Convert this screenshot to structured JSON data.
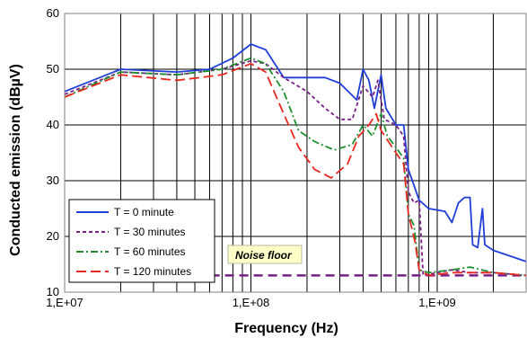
{
  "chart_data": {
    "type": "line",
    "title": "",
    "xlabel": "Frequency (Hz)",
    "ylabel": "Conducted emission (dBµV)",
    "xscale": "log",
    "xlim": [
      10000000.0,
      3000000000.0
    ],
    "ylim": [
      10,
      60
    ],
    "grid": true,
    "legend_position": "bottom-left",
    "x_ticks": [
      {
        "value": 10000000.0,
        "label": "1,E+07"
      },
      {
        "value": 100000000.0,
        "label": "1,E+08"
      },
      {
        "value": 1000000000.0,
        "label": "1,E+09"
      }
    ],
    "y_ticks": [
      {
        "value": 10,
        "label": "10"
      },
      {
        "value": 20,
        "label": "20"
      },
      {
        "value": 30,
        "label": "30"
      },
      {
        "value": 40,
        "label": "40"
      },
      {
        "value": 50,
        "label": "50"
      },
      {
        "value": 60,
        "label": "60"
      }
    ],
    "series": [
      {
        "name": "T = 0 minute",
        "color": "#1f3fd8",
        "dash": "solid",
        "points": [
          [
            10000000.0,
            46
          ],
          [
            20000000.0,
            50
          ],
          [
            40000000.0,
            49.5
          ],
          [
            60000000.0,
            50
          ],
          [
            80000000.0,
            52
          ],
          [
            100000000.0,
            54.5
          ],
          [
            120000000.0,
            53.5
          ],
          [
            150000000.0,
            48.5
          ],
          [
            250000000.0,
            48.5
          ],
          [
            300000000.0,
            47.5
          ],
          [
            370000000.0,
            44.5
          ],
          [
            400000000.0,
            50
          ],
          [
            430000000.0,
            48
          ],
          [
            460000000.0,
            43
          ],
          [
            500000000.0,
            49
          ],
          [
            530000000.0,
            43
          ],
          [
            600000000.0,
            40
          ],
          [
            660000000.0,
            40
          ],
          [
            700000000.0,
            32
          ],
          [
            800000000.0,
            26.5
          ],
          [
            900000000.0,
            25
          ],
          [
            1100000000.0,
            24.5
          ],
          [
            1200000000.0,
            22.5
          ],
          [
            1300000000.0,
            26
          ],
          [
            1400000000.0,
            27
          ],
          [
            1500000000.0,
            27
          ],
          [
            1550000000.0,
            18.5
          ],
          [
            1650000000.0,
            18
          ],
          [
            1750000000.0,
            25
          ],
          [
            1800000000.0,
            18.5
          ],
          [
            2000000000.0,
            17.5
          ],
          [
            3000000000.0,
            15.5
          ]
        ]
      },
      {
        "name": "T = 30 minutes",
        "color": "#7a1f8a",
        "dash": "short-dash",
        "points": [
          [
            10000000.0,
            45.5
          ],
          [
            20000000.0,
            49.5
          ],
          [
            40000000.0,
            49
          ],
          [
            70000000.0,
            50
          ],
          [
            100000000.0,
            51.5
          ],
          [
            120000000.0,
            51
          ],
          [
            150000000.0,
            48.5
          ],
          [
            200000000.0,
            46
          ],
          [
            250000000.0,
            43
          ],
          [
            300000000.0,
            41
          ],
          [
            350000000.0,
            41
          ],
          [
            400000000.0,
            47
          ],
          [
            450000000.0,
            45
          ],
          [
            480000000.0,
            48
          ],
          [
            520000000.0,
            41
          ],
          [
            600000000.0,
            40
          ],
          [
            660000000.0,
            38
          ],
          [
            700000000.0,
            28
          ],
          [
            750000000.0,
            26
          ],
          [
            800000000.0,
            26.5
          ],
          [
            840000000.0,
            13
          ],
          [
            1000000000.0,
            13.5
          ],
          [
            1200000000.0,
            14
          ],
          [
            1500000000.0,
            13.5
          ],
          [
            2000000000.0,
            13.5
          ],
          [
            3000000000.0,
            13
          ]
        ]
      },
      {
        "name": "T = 60 minutes",
        "color": "#1f8f2e",
        "dash": "dash-dot",
        "points": [
          [
            10000000.0,
            45
          ],
          [
            20000000.0,
            49.5
          ],
          [
            40000000.0,
            49
          ],
          [
            70000000.0,
            50
          ],
          [
            100000000.0,
            52
          ],
          [
            120000000.0,
            51
          ],
          [
            150000000.0,
            46
          ],
          [
            180000000.0,
            39
          ],
          [
            220000000.0,
            37
          ],
          [
            280000000.0,
            35.5
          ],
          [
            350000000.0,
            36.5
          ],
          [
            400000000.0,
            40
          ],
          [
            450000000.0,
            38
          ],
          [
            500000000.0,
            42
          ],
          [
            540000000.0,
            38
          ],
          [
            600000000.0,
            36
          ],
          [
            660000000.0,
            34
          ],
          [
            700000000.0,
            24
          ],
          [
            750000000.0,
            22
          ],
          [
            800000000.0,
            14
          ],
          [
            900000000.0,
            13.5
          ],
          [
            1200000000.0,
            14
          ],
          [
            1500000000.0,
            14.5
          ],
          [
            2000000000.0,
            13.5
          ],
          [
            3000000000.0,
            13
          ]
        ]
      },
      {
        "name": "T = 120 minutes",
        "color": "#e8281f",
        "dash": "long-dash",
        "points": [
          [
            10000000.0,
            45
          ],
          [
            20000000.0,
            49
          ],
          [
            40000000.0,
            48
          ],
          [
            70000000.0,
            49
          ],
          [
            100000000.0,
            51
          ],
          [
            120000000.0,
            49.5
          ],
          [
            150000000.0,
            42
          ],
          [
            180000000.0,
            36
          ],
          [
            220000000.0,
            32
          ],
          [
            270000000.0,
            30.5
          ],
          [
            330000000.0,
            33
          ],
          [
            380000000.0,
            38
          ],
          [
            430000000.0,
            40
          ],
          [
            470000000.0,
            42
          ],
          [
            500000000.0,
            39
          ],
          [
            600000000.0,
            35
          ],
          [
            660000000.0,
            33
          ],
          [
            700000000.0,
            24
          ],
          [
            760000000.0,
            19
          ],
          [
            800000000.0,
            14
          ],
          [
            900000000.0,
            13
          ],
          [
            1200000000.0,
            13.5
          ],
          [
            1500000000.0,
            13.5
          ],
          [
            2000000000.0,
            13.5
          ],
          [
            3000000000.0,
            13
          ]
        ]
      }
    ],
    "noise_floor": {
      "label": "Noise floor",
      "value": 13,
      "color": "#7a1f8a",
      "label_background": "#ffffc8"
    }
  }
}
